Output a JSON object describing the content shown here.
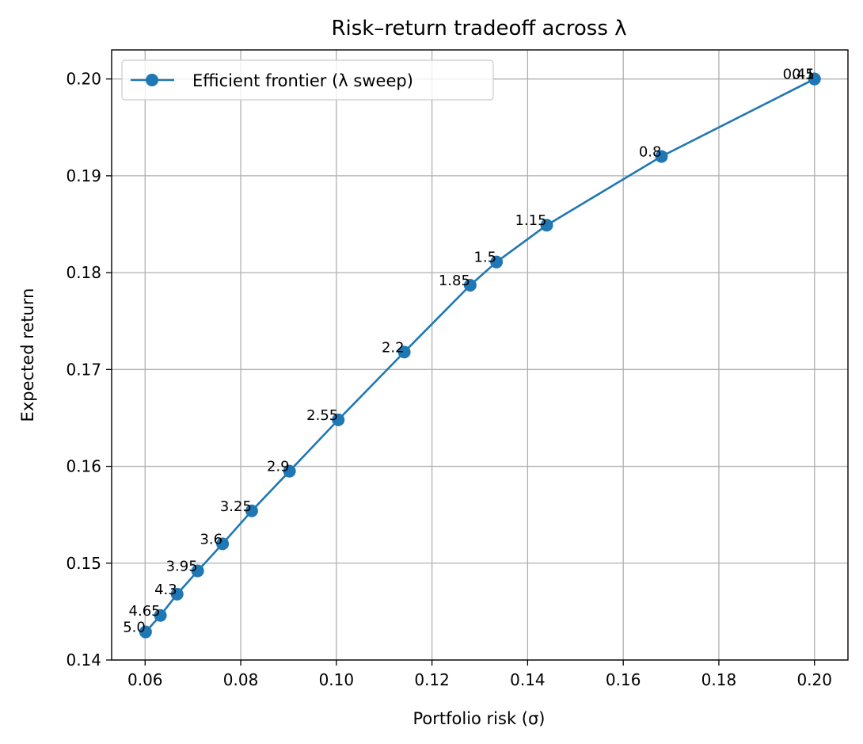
{
  "chart_data": {
    "type": "line",
    "title": "Risk–return tradeoff across λ",
    "xlabel": "Portfolio risk (σ)",
    "ylabel": "Expected return",
    "xlim": [
      0.053,
      0.207
    ],
    "ylim": [
      0.14,
      0.203
    ],
    "xticks": [
      "0.06",
      "0.08",
      "0.10",
      "0.12",
      "0.14",
      "0.16",
      "0.18",
      "0.20"
    ],
    "yticks": [
      "0.14",
      "0.15",
      "0.16",
      "0.17",
      "0.18",
      "0.19",
      "0.20"
    ],
    "grid": true,
    "legend_position": "top-left",
    "colors": {
      "series": "#1f77b4",
      "grid": "#b0b0b0"
    },
    "series": [
      {
        "name": "Efficient frontier (λ sweep)",
        "points": [
          {
            "label": "0.1",
            "x": 0.2,
            "y": 0.2
          },
          {
            "label": "0.45",
            "x": 0.2,
            "y": 0.2
          },
          {
            "label": "0.8",
            "x": 0.168,
            "y": 0.192
          },
          {
            "label": "1.15",
            "x": 0.144,
            "y": 0.1849
          },
          {
            "label": "1.5",
            "x": 0.1335,
            "y": 0.1811
          },
          {
            "label": "1.85",
            "x": 0.128,
            "y": 0.1787
          },
          {
            "label": "2.2",
            "x": 0.1142,
            "y": 0.1718
          },
          {
            "label": "2.55",
            "x": 0.1004,
            "y": 0.1648
          },
          {
            "label": "2.9",
            "x": 0.0902,
            "y": 0.1595
          },
          {
            "label": "3.25",
            "x": 0.0823,
            "y": 0.1554
          },
          {
            "label": "3.6",
            "x": 0.0762,
            "y": 0.152
          },
          {
            "label": "3.95",
            "x": 0.071,
            "y": 0.1492
          },
          {
            "label": "4.3",
            "x": 0.0667,
            "y": 0.1468
          },
          {
            "label": "4.65",
            "x": 0.0632,
            "y": 0.1446
          },
          {
            "label": "5.0",
            "x": 0.0601,
            "y": 0.1429
          }
        ]
      }
    ]
  }
}
